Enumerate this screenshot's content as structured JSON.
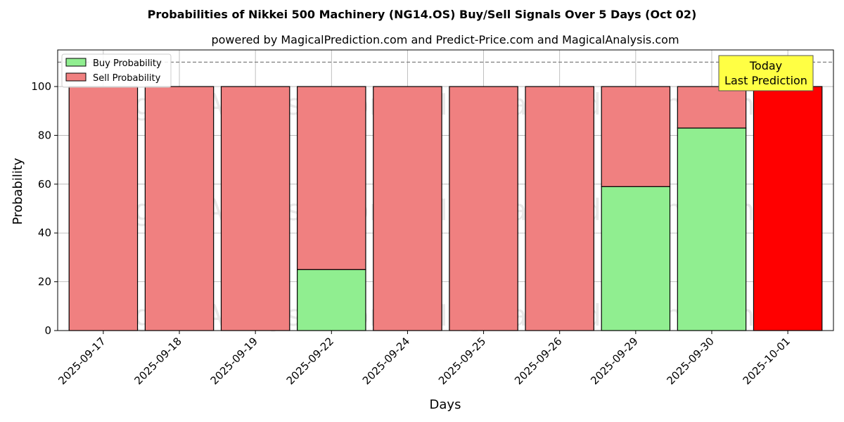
{
  "chart_data": {
    "type": "bar",
    "title": "Probabilities of Nikkei 500 Machinery (NG14.OS) Buy/Sell Signals Over 5 Days (Oct 02)",
    "subtitle": "powered by MagicalPrediction.com and Predict-Price.com and MagicalAnalysis.com",
    "xlabel": "Days",
    "ylabel": "Probability",
    "ylim": [
      0,
      115
    ],
    "yticks": [
      0,
      20,
      40,
      60,
      80,
      100
    ],
    "reference_line": 110,
    "grid": true,
    "legend_position": "top-left",
    "categories": [
      "2025-09-17",
      "2025-09-18",
      "2025-09-19",
      "2025-09-22",
      "2025-09-24",
      "2025-09-25",
      "2025-09-26",
      "2025-09-29",
      "2025-09-30",
      "2025-10-01"
    ],
    "series": [
      {
        "name": "Buy Probability",
        "color": "#90ee90",
        "values": [
          0,
          0,
          0,
          25,
          0,
          0,
          0,
          59,
          83,
          0
        ]
      },
      {
        "name": "Sell Probability",
        "color": "#f08080",
        "values": [
          100,
          100,
          100,
          75,
          100,
          100,
          100,
          41,
          17,
          100
        ]
      }
    ],
    "highlight": {
      "category": "2025-10-01",
      "color": "#ff0000"
    },
    "annotation": {
      "line1": "Today",
      "line2": "Last Prediction",
      "color": "#ffff44"
    },
    "watermarks": [
      "MagicalAnalysis.com",
      "MagicalPrediction.com"
    ]
  }
}
